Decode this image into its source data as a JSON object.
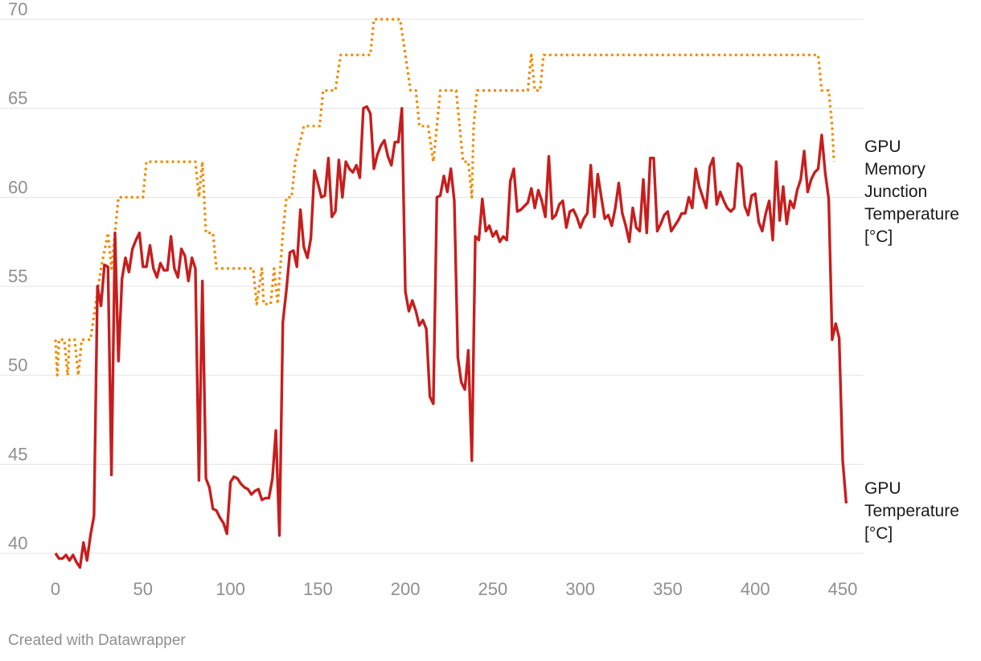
{
  "credit": "Created with Datawrapper",
  "chart_data": {
    "type": "line",
    "xlim": [
      0,
      450
    ],
    "ylim": [
      40,
      70
    ],
    "x_ticks": [
      0,
      50,
      100,
      150,
      200,
      250,
      300,
      350,
      400,
      450
    ],
    "y_ticks": [
      40,
      45,
      50,
      55,
      60,
      65,
      70
    ],
    "grid": true,
    "series": [
      {
        "name": "GPU Memory Junction Temperature [°C]",
        "label_lines": [
          "GPU",
          "Memory",
          "Junction",
          "Temperature",
          "[°C]"
        ],
        "color": "#f08c00",
        "style": "dotted",
        "points": [
          [
            0,
            52
          ],
          [
            1,
            50
          ],
          [
            2,
            52
          ],
          [
            5,
            52
          ],
          [
            7,
            50
          ],
          [
            8,
            52
          ],
          [
            11,
            52
          ],
          [
            13,
            50
          ],
          [
            15,
            52
          ],
          [
            20,
            52
          ],
          [
            23,
            54
          ],
          [
            26,
            56
          ],
          [
            30,
            58
          ],
          [
            32,
            56
          ],
          [
            34,
            58
          ],
          [
            36,
            60
          ],
          [
            50,
            60
          ],
          [
            52,
            62
          ],
          [
            80,
            62
          ],
          [
            82,
            60
          ],
          [
            84,
            62
          ],
          [
            86,
            58
          ],
          [
            90,
            58
          ],
          [
            92,
            56
          ],
          [
            113,
            56
          ],
          [
            115,
            54
          ],
          [
            118,
            56
          ],
          [
            119,
            54
          ],
          [
            123,
            54
          ],
          [
            125,
            56
          ],
          [
            127,
            54
          ],
          [
            130,
            58
          ],
          [
            132,
            60
          ],
          [
            135,
            60
          ],
          [
            137,
            62
          ],
          [
            142,
            64
          ],
          [
            151,
            64
          ],
          [
            153,
            66
          ],
          [
            160,
            66
          ],
          [
            163,
            68
          ],
          [
            180,
            68
          ],
          [
            182,
            70
          ],
          [
            197,
            70
          ],
          [
            200,
            68
          ],
          [
            203,
            66
          ],
          [
            206,
            66
          ],
          [
            208,
            64
          ],
          [
            213,
            64
          ],
          [
            216,
            62
          ],
          [
            218,
            64
          ],
          [
            220,
            66
          ],
          [
            229,
            66
          ],
          [
            231,
            64
          ],
          [
            233,
            62
          ],
          [
            236,
            62
          ],
          [
            238,
            60
          ],
          [
            239,
            64
          ],
          [
            241,
            66
          ],
          [
            270,
            66
          ],
          [
            272,
            68
          ],
          [
            274,
            66
          ],
          [
            277,
            66
          ],
          [
            279,
            68
          ],
          [
            436,
            68
          ],
          [
            438,
            66
          ],
          [
            442,
            66
          ],
          [
            444,
            64
          ],
          [
            445,
            62
          ]
        ]
      },
      {
        "name": "GPU Temperature [°C]",
        "label_lines": [
          "GPU",
          "Temperature",
          "[°C]"
        ],
        "color": "#c71e1d",
        "style": "solid",
        "points": [
          [
            0,
            40
          ],
          [
            2,
            39.7
          ],
          [
            4,
            39.7
          ],
          [
            6,
            39.9
          ],
          [
            8,
            39.6
          ],
          [
            10,
            39.9
          ],
          [
            12,
            39.5
          ],
          [
            14,
            39.2
          ],
          [
            16,
            40.6
          ],
          [
            18,
            39.6
          ],
          [
            20,
            41
          ],
          [
            22,
            42.1
          ],
          [
            24,
            55
          ],
          [
            26,
            53.9
          ],
          [
            28,
            56.2
          ],
          [
            30,
            56.1
          ],
          [
            32,
            44.4
          ],
          [
            34,
            58
          ],
          [
            36,
            50.8
          ],
          [
            38,
            55.4
          ],
          [
            40,
            56.6
          ],
          [
            42,
            55.8
          ],
          [
            44,
            57.1
          ],
          [
            46,
            57.6
          ],
          [
            48,
            58
          ],
          [
            50,
            56.1
          ],
          [
            52,
            56.1
          ],
          [
            54,
            57.3
          ],
          [
            56,
            56
          ],
          [
            58,
            55.5
          ],
          [
            60,
            56.3
          ],
          [
            62,
            55.9
          ],
          [
            64,
            55.9
          ],
          [
            66,
            57.8
          ],
          [
            68,
            56
          ],
          [
            70,
            55.5
          ],
          [
            72,
            57.1
          ],
          [
            74,
            56.7
          ],
          [
            76,
            55.3
          ],
          [
            78,
            56.6
          ],
          [
            80,
            56
          ],
          [
            82,
            44.1
          ],
          [
            84,
            55.3
          ],
          [
            86,
            44.2
          ],
          [
            88,
            43.7
          ],
          [
            90,
            42.5
          ],
          [
            92,
            42.4
          ],
          [
            94,
            42
          ],
          [
            96,
            41.7
          ],
          [
            98,
            41.1
          ],
          [
            100,
            44
          ],
          [
            102,
            44.3
          ],
          [
            104,
            44.2
          ],
          [
            106,
            43.9
          ],
          [
            108,
            43.7
          ],
          [
            110,
            43.6
          ],
          [
            112,
            43.3
          ],
          [
            114,
            43.5
          ],
          [
            116,
            43.6
          ],
          [
            118,
            43
          ],
          [
            120,
            43.1
          ],
          [
            122,
            43.1
          ],
          [
            124,
            44.2
          ],
          [
            126,
            46.9
          ],
          [
            128,
            41
          ],
          [
            130,
            53
          ],
          [
            132,
            54.8
          ],
          [
            134,
            56.9
          ],
          [
            136,
            57
          ],
          [
            138,
            56.1
          ],
          [
            140,
            59.3
          ],
          [
            142,
            57.2
          ],
          [
            144,
            56.6
          ],
          [
            146,
            57.7
          ],
          [
            148,
            61.5
          ],
          [
            150,
            60.8
          ],
          [
            152,
            60
          ],
          [
            154,
            60.1
          ],
          [
            156,
            62.2
          ],
          [
            158,
            58.9
          ],
          [
            160,
            59.2
          ],
          [
            162,
            62.1
          ],
          [
            164,
            60
          ],
          [
            166,
            62
          ],
          [
            168,
            61.6
          ],
          [
            170,
            61.4
          ],
          [
            172,
            61.8
          ],
          [
            174,
            61.1
          ],
          [
            176,
            65
          ],
          [
            178,
            65.1
          ],
          [
            180,
            64.7
          ],
          [
            182,
            61.6
          ],
          [
            184,
            62.4
          ],
          [
            186,
            62.9
          ],
          [
            188,
            63.2
          ],
          [
            190,
            62.3
          ],
          [
            192,
            61.8
          ],
          [
            194,
            63.1
          ],
          [
            196,
            63.1
          ],
          [
            198,
            65
          ],
          [
            200,
            54.7
          ],
          [
            202,
            53.6
          ],
          [
            204,
            54.2
          ],
          [
            206,
            53.6
          ],
          [
            208,
            52.8
          ],
          [
            210,
            53.1
          ],
          [
            212,
            52.6
          ],
          [
            214,
            48.8
          ],
          [
            216,
            48.4
          ],
          [
            218,
            60
          ],
          [
            220,
            60.1
          ],
          [
            222,
            61.2
          ],
          [
            224,
            60.3
          ],
          [
            226,
            61.6
          ],
          [
            228,
            59.8
          ],
          [
            230,
            51
          ],
          [
            232,
            49.6
          ],
          [
            234,
            49.2
          ],
          [
            236,
            51.4
          ],
          [
            238,
            45.2
          ],
          [
            240,
            57.8
          ],
          [
            242,
            57.6
          ],
          [
            244,
            59.9
          ],
          [
            246,
            58.1
          ],
          [
            248,
            58.4
          ],
          [
            250,
            57.8
          ],
          [
            252,
            58.1
          ],
          [
            254,
            57.5
          ],
          [
            256,
            57.8
          ],
          [
            258,
            57.6
          ],
          [
            260,
            60.9
          ],
          [
            262,
            61.6
          ],
          [
            264,
            59.2
          ],
          [
            266,
            59.3
          ],
          [
            268,
            59.5
          ],
          [
            270,
            59.7
          ],
          [
            272,
            60.5
          ],
          [
            274,
            59.4
          ],
          [
            276,
            60.4
          ],
          [
            278,
            59.8
          ],
          [
            280,
            58.9
          ],
          [
            282,
            62.3
          ],
          [
            284,
            58.8
          ],
          [
            286,
            59
          ],
          [
            288,
            59.6
          ],
          [
            290,
            59.8
          ],
          [
            292,
            58.3
          ],
          [
            294,
            59.2
          ],
          [
            296,
            59.3
          ],
          [
            298,
            58.9
          ],
          [
            300,
            58.3
          ],
          [
            302,
            58.8
          ],
          [
            304,
            59.1
          ],
          [
            306,
            61.8
          ],
          [
            308,
            58.9
          ],
          [
            310,
            61.3
          ],
          [
            312,
            60
          ],
          [
            314,
            58.8
          ],
          [
            316,
            59
          ],
          [
            318,
            58.4
          ],
          [
            320,
            59.4
          ],
          [
            322,
            60.8
          ],
          [
            324,
            59.1
          ],
          [
            326,
            58.4
          ],
          [
            328,
            57.5
          ],
          [
            330,
            59.4
          ],
          [
            332,
            58.3
          ],
          [
            334,
            58.1
          ],
          [
            336,
            61
          ],
          [
            338,
            58
          ],
          [
            340,
            62.2
          ],
          [
            342,
            62.2
          ],
          [
            344,
            58.1
          ],
          [
            346,
            58.5
          ],
          [
            348,
            59
          ],
          [
            350,
            59.2
          ],
          [
            352,
            58.1
          ],
          [
            354,
            58.4
          ],
          [
            356,
            58.7
          ],
          [
            358,
            59.1
          ],
          [
            360,
            59.1
          ],
          [
            362,
            60
          ],
          [
            364,
            59.4
          ],
          [
            366,
            61.6
          ],
          [
            368,
            60.6
          ],
          [
            370,
            60
          ],
          [
            372,
            59.4
          ],
          [
            374,
            61.7
          ],
          [
            376,
            62.2
          ],
          [
            378,
            59.6
          ],
          [
            380,
            60.3
          ],
          [
            382,
            59.8
          ],
          [
            384,
            59.4
          ],
          [
            386,
            59.2
          ],
          [
            388,
            59.4
          ],
          [
            390,
            61.9
          ],
          [
            392,
            61.7
          ],
          [
            394,
            59.5
          ],
          [
            396,
            59
          ],
          [
            398,
            60.1
          ],
          [
            400,
            60.2
          ],
          [
            402,
            58.6
          ],
          [
            404,
            58.1
          ],
          [
            406,
            59.1
          ],
          [
            408,
            59.8
          ],
          [
            410,
            57.6
          ],
          [
            412,
            62
          ],
          [
            414,
            58.7
          ],
          [
            416,
            60.6
          ],
          [
            418,
            58.5
          ],
          [
            420,
            59.8
          ],
          [
            422,
            59.4
          ],
          [
            424,
            60.4
          ],
          [
            426,
            61
          ],
          [
            428,
            62.6
          ],
          [
            430,
            60.3
          ],
          [
            432,
            61
          ],
          [
            434,
            61.4
          ],
          [
            436,
            61.6
          ],
          [
            438,
            63.5
          ],
          [
            440,
            61.4
          ],
          [
            442,
            59.9
          ],
          [
            444,
            52
          ],
          [
            446,
            52.9
          ],
          [
            448,
            52.1
          ],
          [
            450,
            45.2
          ],
          [
            452,
            42.8
          ]
        ]
      }
    ]
  }
}
